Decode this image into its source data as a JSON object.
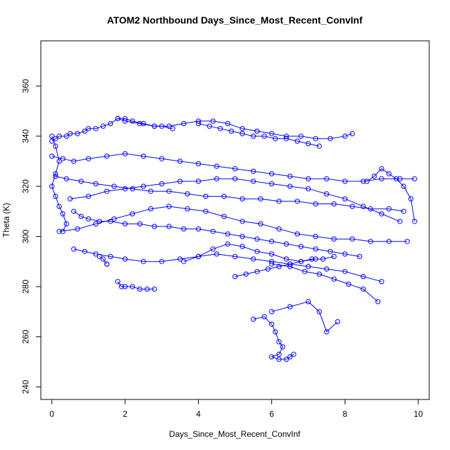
{
  "chart_data": {
    "type": "scatter",
    "title": "ATOM2 Northbound Days_Since_Most_Recent_ConvInf",
    "xlabel": "Days_Since_Most_Recent_ConvInf",
    "ylabel": "Theta (K)",
    "xlim": [
      -0.3,
      10.3
    ],
    "ylim": [
      235,
      378
    ],
    "x_ticks": [
      0,
      2,
      4,
      6,
      8,
      10
    ],
    "y_ticks": [
      240,
      260,
      280,
      300,
      320,
      340,
      360
    ],
    "x_tick_labels": [
      "0",
      "2",
      "4",
      "6",
      "8",
      "10"
    ],
    "y_tick_labels": [
      "240",
      "260",
      "280",
      "300",
      "320",
      "340",
      "360"
    ],
    "style": {
      "color": "#0000ff",
      "marker": "open-circle",
      "connected": true,
      "grid": false,
      "legend": "none"
    },
    "series": [
      {
        "x": [
          0.0,
          0.1,
          0.2,
          0.4,
          0.5,
          0.7,
          0.9,
          1.0,
          1.2,
          1.4,
          1.6,
          1.8,
          2.0,
          2.2,
          2.5,
          2.8,
          3.0,
          3.3
        ],
        "y": [
          338,
          339,
          340,
          340,
          341,
          341,
          342,
          343,
          343,
          344,
          345,
          347,
          347,
          346,
          345,
          344,
          344,
          343
        ]
      },
      {
        "x": [
          1.8,
          2.0,
          2.4,
          2.8,
          3.2,
          3.6,
          4.0,
          4.4,
          4.8,
          5.2,
          5.6,
          6.0,
          6.4,
          6.8,
          7.2,
          7.6,
          8.0,
          8.2
        ],
        "y": [
          347,
          346,
          345,
          344,
          344,
          345,
          346,
          346,
          345,
          343,
          342,
          341,
          340,
          340,
          339,
          339,
          340,
          341
        ]
      },
      {
        "x": [
          0.0,
          0.3,
          0.6,
          1.0,
          1.5,
          2.0,
          2.5,
          3.0,
          3.5,
          4.0,
          4.5,
          5.0,
          5.5,
          6.0,
          6.5,
          7.0,
          7.5,
          8.0,
          8.5,
          9.0,
          9.5,
          9.9
        ],
        "y": [
          332,
          331,
          330,
          331,
          332,
          333,
          332,
          331,
          330,
          329,
          328,
          327,
          326,
          325,
          324,
          323,
          323,
          322,
          322,
          323,
          323,
          323
        ]
      },
      {
        "x": [
          0.1,
          0.4,
          0.8,
          1.2,
          1.7,
          2.2,
          2.7,
          3.2,
          3.7,
          4.2,
          4.7,
          5.2,
          5.7,
          6.2,
          6.7,
          7.2,
          7.7,
          8.2,
          8.7,
          9.2,
          9.6
        ],
        "y": [
          324,
          323,
          322,
          321,
          320,
          319,
          318,
          318,
          317,
          316,
          316,
          315,
          315,
          314,
          314,
          313,
          313,
          312,
          311,
          311,
          310
        ]
      },
      {
        "x": [
          0.6,
          0.8,
          1.0,
          1.3,
          1.6,
          2.0,
          2.4,
          2.8,
          3.2,
          3.6,
          4.0,
          4.4,
          4.8,
          5.2,
          5.6,
          6.0,
          6.4,
          6.8,
          7.2,
          7.6,
          8.0,
          8.4
        ],
        "y": [
          310,
          308,
          307,
          306,
          306,
          305,
          305,
          304,
          304,
          303,
          303,
          302,
          301,
          300,
          299,
          298,
          297,
          296,
          295,
          294,
          293,
          292
        ]
      },
      {
        "x": [
          0.6,
          0.9,
          1.2,
          1.6,
          2.0,
          2.5,
          3.0,
          3.5,
          4.0,
          4.5,
          5.0,
          5.5,
          6.0,
          6.5,
          7.0,
          7.5,
          8.0,
          8.5,
          9.0
        ],
        "y": [
          295,
          294,
          293,
          292,
          291,
          290,
          290,
          291,
          292,
          293,
          292,
          291,
          290,
          289,
          288,
          287,
          286,
          284,
          282
        ]
      },
      {
        "x": [
          1.8,
          1.9,
          2.0,
          2.2,
          2.4,
          2.6,
          2.8
        ],
        "y": [
          282,
          280,
          280,
          280,
          279,
          279,
          279
        ]
      },
      {
        "x": [
          1.3,
          1.4,
          1.5,
          1.5
        ],
        "y": [
          292,
          291,
          289,
          289
        ]
      },
      {
        "x": [
          5.5,
          5.8,
          6.0,
          6.1,
          6.2,
          6.3,
          6.2,
          6.0,
          6.2,
          6.4,
          6.5,
          6.6
        ],
        "y": [
          267,
          268,
          265,
          262,
          258,
          256,
          253,
          252,
          251,
          251,
          252,
          253
        ]
      },
      {
        "x": [
          6.0,
          6.5,
          7.0,
          7.3,
          7.5,
          7.8
        ],
        "y": [
          270,
          272,
          274,
          270,
          262,
          266
        ]
      },
      {
        "x": [
          6.0,
          6.5,
          6.9,
          7.3,
          7.7,
          8.1,
          8.5,
          8.9
        ],
        "y": [
          289,
          288,
          286,
          285,
          283,
          281,
          279,
          274
        ]
      },
      {
        "x": [
          0.5,
          1.0,
          1.5,
          2.0,
          2.5,
          3.0,
          3.5,
          4.0,
          4.5,
          5.0,
          5.5,
          6.0,
          6.5,
          7.0,
          7.5,
          8.0,
          8.5,
          9.0,
          9.5
        ],
        "y": [
          315,
          316,
          318,
          319,
          320,
          321,
          322,
          322,
          323,
          323,
          322,
          321,
          320,
          319,
          317,
          315,
          312,
          309,
          306
        ]
      },
      {
        "x": [
          0.2,
          0.7,
          1.2,
          1.7,
          2.2,
          2.7,
          3.2,
          3.7,
          4.2,
          4.7,
          5.2,
          5.7,
          6.2,
          6.7,
          7.2,
          7.7,
          8.2,
          8.7,
          9.2,
          9.7
        ],
        "y": [
          302,
          303,
          305,
          307,
          309,
          311,
          312,
          311,
          310,
          308,
          306,
          305,
          303,
          301,
          300,
          299,
          299,
          298,
          298,
          298
        ]
      },
      {
        "x": [
          3.6,
          4.0,
          4.4,
          4.8,
          5.2,
          5.6,
          6.0,
          6.4,
          6.8,
          7.2
        ],
        "y": [
          290,
          292,
          295,
          297,
          296,
          294,
          293,
          291,
          290,
          291
        ]
      },
      {
        "x": [
          8.6,
          8.8,
          9.0,
          9.2,
          9.4,
          9.6,
          9.8,
          9.9
        ],
        "y": [
          322,
          324,
          327,
          325,
          323,
          320,
          315,
          306
        ]
      },
      {
        "x": [
          0.0,
          0.1,
          0.2,
          0.1,
          0.0,
          0.1,
          0.2,
          0.3,
          0.4,
          0.3
        ],
        "y": [
          340,
          336,
          330,
          325,
          320,
          316,
          312,
          309,
          305,
          302
        ]
      },
      {
        "x": [
          5.0,
          5.3,
          5.6,
          5.9,
          6.2,
          6.5,
          6.8,
          7.1,
          7.4,
          7.7
        ],
        "y": [
          284,
          285,
          286,
          287,
          288,
          289,
          290,
          291,
          291,
          292
        ]
      },
      {
        "x": [
          4.0,
          4.3,
          4.6,
          4.9,
          5.2,
          5.5,
          5.8,
          6.1,
          6.4,
          6.7,
          7.0,
          7.3
        ],
        "y": [
          345,
          344,
          343,
          342,
          341,
          340,
          340,
          339,
          339,
          338,
          337,
          336
        ]
      }
    ]
  }
}
